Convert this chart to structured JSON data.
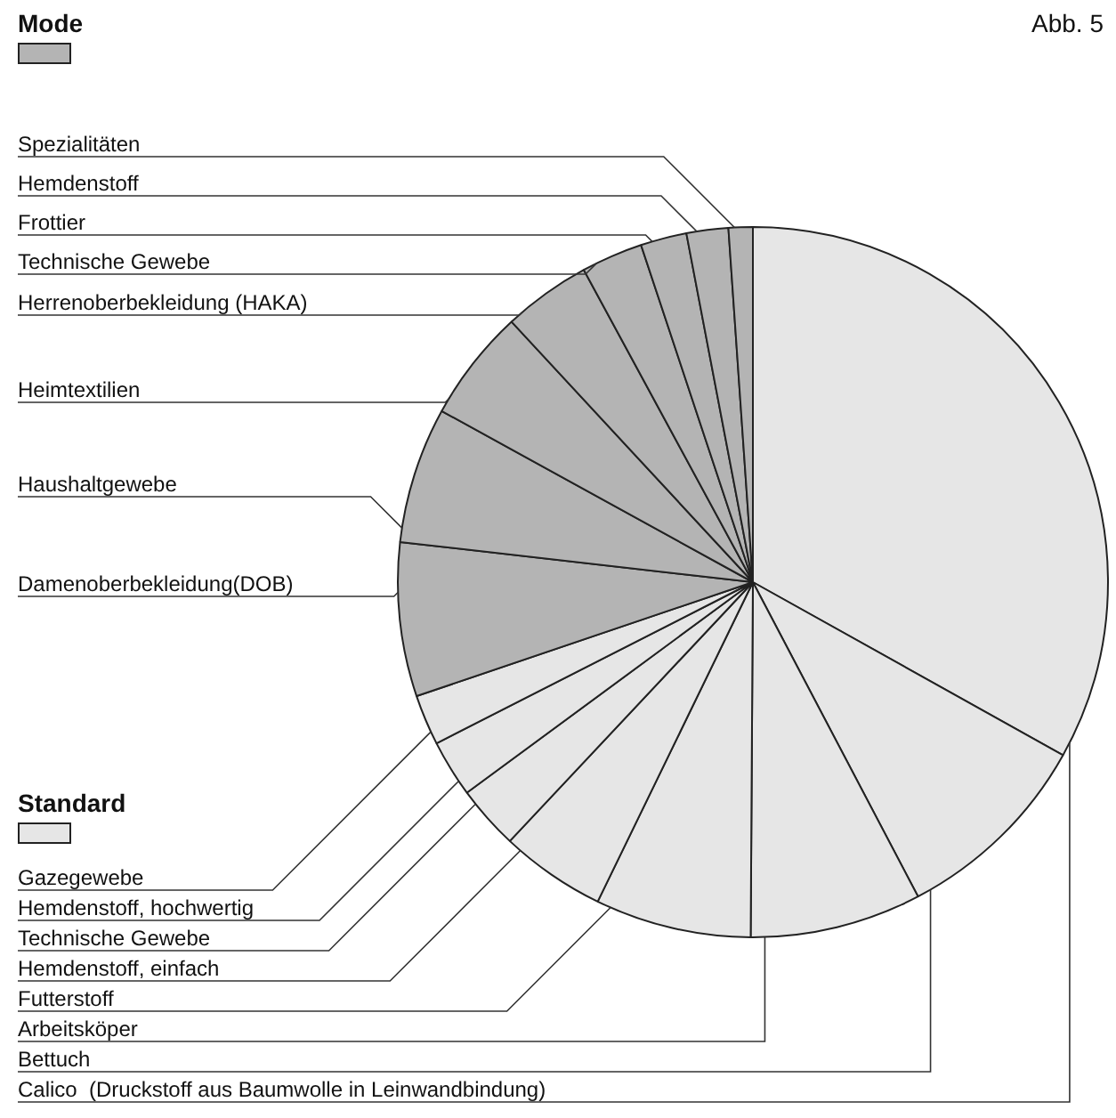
{
  "chart_data": {
    "type": "pie",
    "categories": [
      "Calico  (Druckstoff aus Baumwolle in Leinwandbindung)",
      "Bettuch",
      "Arbeitsköper",
      "Futterstoff",
      "Hemdenstoff, einfach",
      "Technische Gewebe",
      "Hemdenstoff, hochwertig",
      "Gazegewebe",
      "Damenoberbekleidung(DOB)",
      "Haushaltgewebe",
      "Heimtextilien",
      "Herrenoberbekleidung (HAKA)",
      "Technische Gewebe",
      "Frottier",
      "Hemdenstoff",
      "Spezialitäten"
    ],
    "values": [
      33.1,
      9.2,
      7.8,
      7.1,
      4.8,
      2.9,
      2.6,
      2.3,
      7.0,
      6.2,
      5.1,
      4.0,
      2.8,
      2.1,
      1.9,
      1.1
    ],
    "colors": [
      "#e6e6e6",
      "#e6e6e6",
      "#e6e6e6",
      "#e6e6e6",
      "#e6e6e6",
      "#e6e6e6",
      "#e6e6e6",
      "#e6e6e6",
      "#b4b4b4",
      "#b4b4b4",
      "#b4b4b4",
      "#b4b4b4",
      "#b4b4b4",
      "#b4b4b4",
      "#b4b4b4",
      "#b4b4b4"
    ],
    "annotations": [
      "Abb. 5",
      "Mode",
      "Standard"
    ],
    "legend": "left"
  }
}
